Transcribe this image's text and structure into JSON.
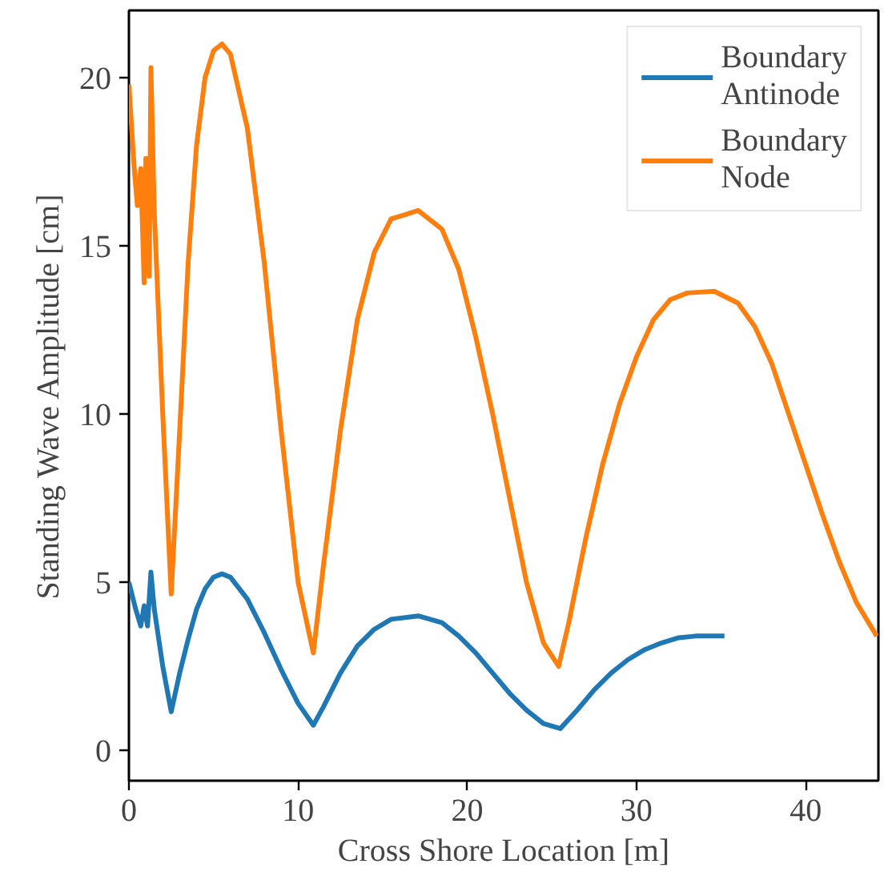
{
  "chart_data": {
    "type": "line",
    "xlabel": "Cross Shore Location [m]",
    "ylabel": "Standing Wave Amplitude [cm]",
    "xlim": [
      0,
      44.3
    ],
    "ylim": [
      -0.9,
      22
    ],
    "xticks": [
      0,
      10,
      20,
      30,
      40
    ],
    "yticks": [
      0,
      5,
      10,
      15,
      20
    ],
    "grid": false,
    "legend": "top right",
    "series": [
      {
        "name": "Boundary\nAntinode",
        "color": "#1f77b4",
        "x": [
          0,
          0.4,
          0.7,
          0.9,
          1.1,
          1.3,
          1.5,
          2.0,
          2.5,
          3.0,
          3.5,
          4.0,
          4.5,
          5.0,
          5.5,
          6.0,
          7.0,
          8.0,
          9.0,
          10.0,
          10.9,
          11.5,
          12.5,
          13.5,
          14.5,
          15.5,
          17.1,
          18.5,
          19.5,
          20.5,
          21.5,
          22.5,
          23.5,
          24.5,
          25.5,
          26.5,
          27.5,
          28.5,
          29.5,
          30.5,
          31.5,
          32.5,
          33.5,
          35.2
        ],
        "values": [
          5.0,
          4.2,
          3.7,
          4.3,
          3.7,
          5.3,
          4.2,
          2.5,
          1.15,
          2.3,
          3.3,
          4.2,
          4.8,
          5.15,
          5.25,
          5.15,
          4.5,
          3.5,
          2.4,
          1.4,
          0.75,
          1.3,
          2.3,
          3.1,
          3.6,
          3.9,
          4.0,
          3.8,
          3.4,
          2.9,
          2.3,
          1.7,
          1.2,
          0.8,
          0.65,
          1.2,
          1.8,
          2.3,
          2.7,
          3.0,
          3.2,
          3.35,
          3.4,
          3.4
        ]
      },
      {
        "name": "Boundary\nNode",
        "color": "#ff7f0e",
        "x": [
          0,
          0.3,
          0.5,
          0.7,
          0.9,
          1.0,
          1.2,
          1.3,
          1.5,
          2.0,
          2.5,
          3.0,
          3.5,
          4.0,
          4.5,
          5.0,
          5.5,
          6.0,
          7.0,
          8.0,
          9.0,
          10.0,
          10.9,
          11.5,
          12.5,
          13.5,
          14.5,
          15.5,
          17.1,
          18.5,
          19.5,
          20.5,
          21.5,
          22.5,
          23.5,
          24.5,
          25.4,
          26.0,
          27.0,
          28.0,
          29.0,
          30.0,
          31.0,
          32.0,
          33.0,
          34.6,
          36.0,
          37.0,
          38.0,
          39.0,
          40.0,
          41.0,
          42.0,
          43.0,
          44.2
        ],
        "values": [
          19.8,
          17.4,
          16.2,
          17.3,
          13.9,
          17.6,
          14.1,
          20.3,
          16.0,
          10.0,
          4.65,
          9.5,
          14.5,
          18.0,
          20.0,
          20.8,
          21.0,
          20.7,
          18.5,
          14.5,
          9.5,
          5.0,
          2.9,
          5.5,
          9.5,
          12.8,
          14.8,
          15.8,
          16.05,
          15.5,
          14.3,
          12.3,
          10.0,
          7.5,
          5.0,
          3.2,
          2.5,
          3.8,
          6.3,
          8.5,
          10.3,
          11.7,
          12.8,
          13.4,
          13.6,
          13.65,
          13.3,
          12.6,
          11.5,
          10.0,
          8.5,
          7.0,
          5.6,
          4.4,
          3.4
        ]
      }
    ]
  }
}
